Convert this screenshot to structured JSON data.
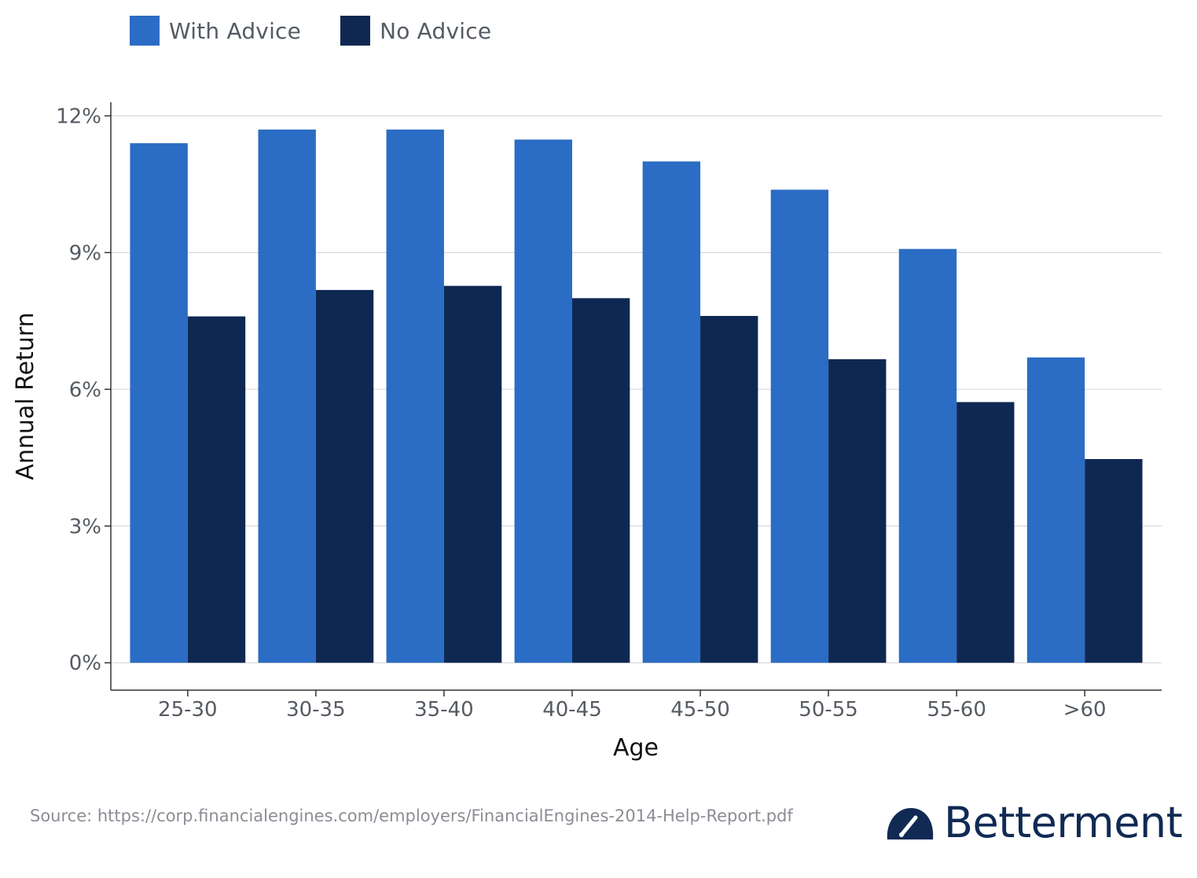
{
  "chart_data": {
    "type": "bar",
    "categories": [
      "25-30",
      "30-35",
      "35-40",
      "40-45",
      "45-50",
      "50-55",
      "55-60",
      ">60"
    ],
    "series": [
      {
        "name": "With Advice",
        "color": "#2b6cc4",
        "values": [
          11.4,
          11.7,
          11.7,
          11.48,
          11.0,
          10.38,
          9.08,
          6.7
        ]
      },
      {
        "name": "No Advice",
        "color": "#0f2852",
        "values": [
          7.6,
          8.18,
          8.27,
          8.0,
          7.61,
          6.66,
          5.72,
          4.47
        ]
      }
    ],
    "xlabel": "Age",
    "ylabel": "Annual Return",
    "yticks": [
      "0%",
      "3%",
      "6%",
      "9%",
      "12%"
    ],
    "ytick_values": [
      0,
      3,
      6,
      9,
      12
    ],
    "ylim": [
      -0.6,
      12.3
    ],
    "grid": "horizontal",
    "legend_position": "top-left"
  },
  "source_text": "Source: https://corp.financialengines.com/employers/FinancialEngines-2014-Help-Report.pdf",
  "brand": {
    "name": "Betterment",
    "icon": "gauge-icon",
    "color": "#102a54"
  }
}
